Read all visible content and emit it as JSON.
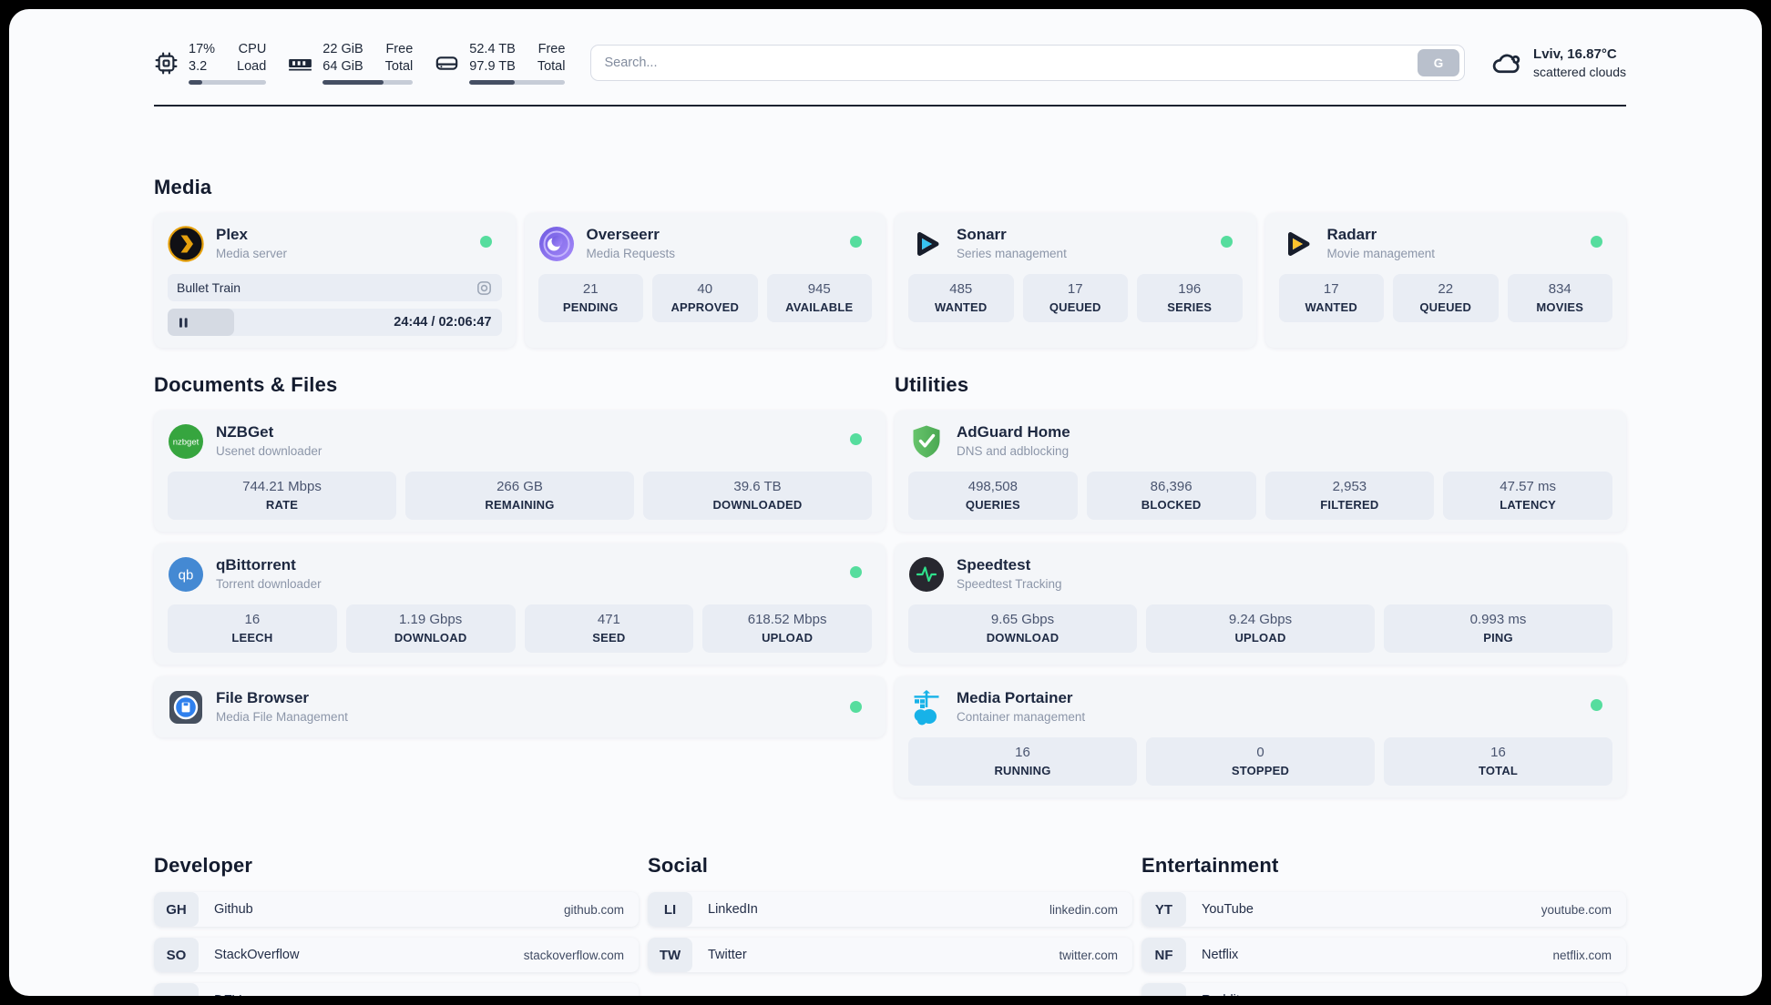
{
  "topbar": {
    "cpu": {
      "value_top": "17%",
      "value_bottom": "3.2",
      "label_top": "CPU",
      "label_bottom": "Load",
      "progress": 17
    },
    "ram": {
      "value_top": "22 GiB",
      "value_bottom": "64 GiB",
      "label_top": "Free",
      "label_bottom": "Total",
      "progress": 67
    },
    "disk": {
      "value_top": "52.4 TB",
      "value_bottom": "97.9 TB",
      "label_top": "Free",
      "label_bottom": "Total",
      "progress": 47
    },
    "search": {
      "placeholder": "Search...",
      "button_label": "G"
    },
    "weather": {
      "location": "Lviv, 16.87°C",
      "condition": "scattered clouds"
    }
  },
  "sections": {
    "media": "Media",
    "documents": "Documents & Files",
    "utilities": "Utilities",
    "developer": "Developer",
    "social": "Social",
    "entertainment": "Entertainment"
  },
  "apps": {
    "plex": {
      "name": "Plex",
      "desc": "Media server",
      "now_playing": "Bullet Train",
      "time": "24:44 / 02:06:47",
      "progress": 20
    },
    "overseerr": {
      "name": "Overseerr",
      "desc": "Media Requests",
      "stats": [
        {
          "value": "21",
          "label": "PENDING"
        },
        {
          "value": "40",
          "label": "APPROVED"
        },
        {
          "value": "945",
          "label": "AVAILABLE"
        }
      ]
    },
    "sonarr": {
      "name": "Sonarr",
      "desc": "Series management",
      "stats": [
        {
          "value": "485",
          "label": "WANTED"
        },
        {
          "value": "17",
          "label": "QUEUED"
        },
        {
          "value": "196",
          "label": "SERIES"
        }
      ]
    },
    "radarr": {
      "name": "Radarr",
      "desc": "Movie management",
      "stats": [
        {
          "value": "17",
          "label": "WANTED"
        },
        {
          "value": "22",
          "label": "QUEUED"
        },
        {
          "value": "834",
          "label": "MOVIES"
        }
      ]
    },
    "nzbget": {
      "name": "NZBGet",
      "desc": "Usenet downloader",
      "icon_text": "nzbget",
      "stats": [
        {
          "value": "744.21 Mbps",
          "label": "RATE"
        },
        {
          "value": "266 GB",
          "label": "REMAINING"
        },
        {
          "value": "39.6 TB",
          "label": "DOWNLOADED"
        }
      ]
    },
    "qbittorrent": {
      "name": "qBittorrent",
      "desc": "Torrent downloader",
      "icon_text": "qb",
      "stats": [
        {
          "value": "16",
          "label": "LEECH"
        },
        {
          "value": "1.19 Gbps",
          "label": "DOWNLOAD"
        },
        {
          "value": "471",
          "label": "SEED"
        },
        {
          "value": "618.52 Mbps",
          "label": "UPLOAD"
        }
      ]
    },
    "filebrowser": {
      "name": "File Browser",
      "desc": "Media File Management"
    },
    "adguard": {
      "name": "AdGuard Home",
      "desc": "DNS and adblocking",
      "stats": [
        {
          "value": "498,508",
          "label": "QUERIES"
        },
        {
          "value": "86,396",
          "label": "BLOCKED"
        },
        {
          "value": "2,953",
          "label": "FILTERED"
        },
        {
          "value": "47.57 ms",
          "label": "LATENCY"
        }
      ]
    },
    "speedtest": {
      "name": "Speedtest",
      "desc": "Speedtest Tracking",
      "stats": [
        {
          "value": "9.65 Gbps",
          "label": "DOWNLOAD"
        },
        {
          "value": "9.24 Gbps",
          "label": "UPLOAD"
        },
        {
          "value": "0.993 ms",
          "label": "PING"
        }
      ]
    },
    "portainer": {
      "name": "Media Portainer",
      "desc": "Container management",
      "stats": [
        {
          "value": "16",
          "label": "RUNNING"
        },
        {
          "value": "0",
          "label": "STOPPED"
        },
        {
          "value": "16",
          "label": "TOTAL"
        }
      ]
    }
  },
  "bookmarks": {
    "developer": [
      {
        "abbr": "GH",
        "name": "Github",
        "url": "github.com"
      },
      {
        "abbr": "SO",
        "name": "StackOverflow",
        "url": "stackoverflow.com"
      },
      {
        "abbr": "DT",
        "name": "DEV",
        "url": "dev.to"
      }
    ],
    "social": [
      {
        "abbr": "LI",
        "name": "LinkedIn",
        "url": "linkedin.com"
      },
      {
        "abbr": "TW",
        "name": "Twitter",
        "url": "twitter.com"
      }
    ],
    "entertainment": [
      {
        "abbr": "YT",
        "name": "YouTube",
        "url": "youtube.com"
      },
      {
        "abbr": "NF",
        "name": "Netflix",
        "url": "netflix.com"
      },
      {
        "abbr": "RE",
        "name": "Reddit",
        "url": "reddit.com"
      }
    ]
  },
  "colors": {
    "status_online": "#56dd9e",
    "accent_dark": "#1b2230"
  }
}
